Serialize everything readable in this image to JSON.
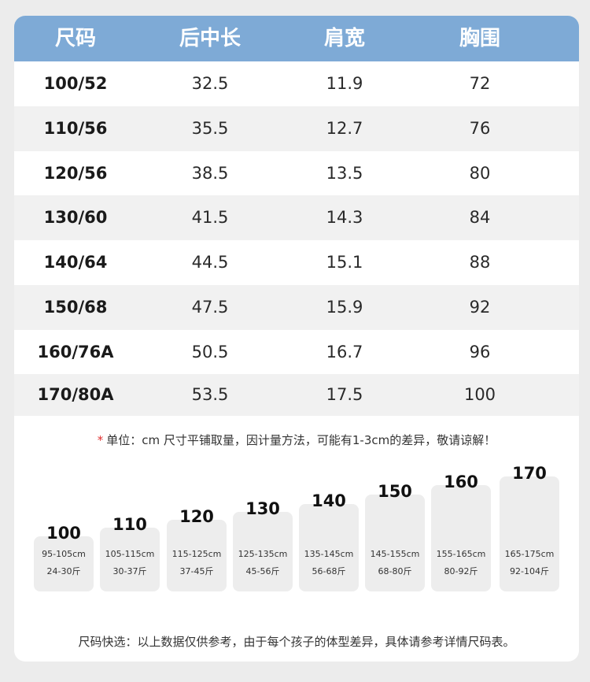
{
  "table": {
    "headers": [
      "尺码",
      "后中长",
      "肩宽",
      "胸围"
    ],
    "rows": [
      [
        "100/52",
        "32.5",
        "11.9",
        "72"
      ],
      [
        "110/56",
        "35.5",
        "12.7",
        "76"
      ],
      [
        "120/56",
        "38.5",
        "13.5",
        "80"
      ],
      [
        "130/60",
        "41.5",
        "14.3",
        "84"
      ],
      [
        "140/64",
        "44.5",
        "15.1",
        "88"
      ],
      [
        "150/68",
        "47.5",
        "15.9",
        "92"
      ],
      [
        "160/76A",
        "50.5",
        "16.7",
        "96"
      ],
      [
        "170/80A",
        "53.5",
        "17.5",
        "100"
      ]
    ]
  },
  "note": {
    "marker": "*",
    "text": "单位：cm  尺寸平铺取量，因计量方法，可能有1-3cm的差异，敬请谅解！"
  },
  "guide": [
    {
      "size": "100",
      "height": "95-105cm",
      "weight": "24-30斤"
    },
    {
      "size": "110",
      "height": "105-115cm",
      "weight": "30-37斤"
    },
    {
      "size": "120",
      "height": "115-125cm",
      "weight": "37-45斤"
    },
    {
      "size": "130",
      "height": "125-135cm",
      "weight": "45-56斤"
    },
    {
      "size": "140",
      "height": "135-145cm",
      "weight": "56-68斤"
    },
    {
      "size": "150",
      "height": "145-155cm",
      "weight": "68-80斤"
    },
    {
      "size": "160",
      "height": "155-165cm",
      "weight": "80-92斤"
    },
    {
      "size": "170",
      "height": "165-175cm",
      "weight": "92-104斤"
    }
  ],
  "footer": {
    "text": "尺码快选：以上数据仅供参考，由于每个孩子的体型差异，具体请参考详情尺码表。"
  },
  "colors": {
    "header_bg": "#7eaad6",
    "alt_row_bg": "#f1f1f1",
    "note_marker": "#e03030"
  }
}
